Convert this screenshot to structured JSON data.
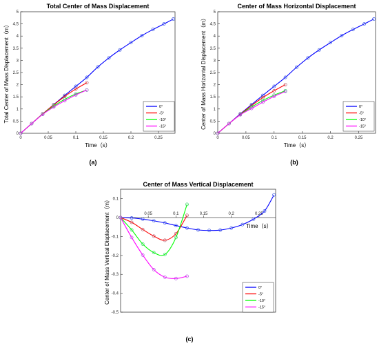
{
  "chart_data": [
    {
      "type": "line",
      "panel_label": "(a)",
      "title": "Total Center of Mass Displacement",
      "xlabel": "Time（s）",
      "ylabel": "Total Center of Mass Displacement（m）",
      "xlim": [
        0,
        0.28
      ],
      "ylim": [
        0,
        5
      ],
      "xticks": [
        0,
        0.05,
        0.1,
        0.15,
        0.2,
        0.25
      ],
      "yticks": [
        0,
        0.5,
        1,
        1.5,
        2,
        2.5,
        3,
        3.5,
        4,
        4.5,
        5
      ],
      "grid": false,
      "legend_position": "bottom-right",
      "series": [
        {
          "name": "0°",
          "color": "#0000ff",
          "x": [
            0,
            0.02,
            0.04,
            0.06,
            0.08,
            0.1,
            0.12,
            0.14,
            0.16,
            0.18,
            0.2,
            0.22,
            0.24,
            0.26,
            0.277
          ],
          "y": [
            0,
            0.4,
            0.8,
            1.18,
            1.56,
            1.93,
            2.3,
            2.73,
            3.1,
            3.43,
            3.73,
            4.02,
            4.27,
            4.5,
            4.7
          ]
        },
        {
          "name": "-5°",
          "color": "#ff0000",
          "x": [
            0,
            0.02,
            0.04,
            0.06,
            0.08,
            0.1,
            0.12
          ],
          "y": [
            0,
            0.4,
            0.8,
            1.17,
            1.52,
            1.82,
            2.08
          ]
        },
        {
          "name": "-10°",
          "color": "#00ff00",
          "x": [
            0,
            0.02,
            0.04,
            0.06,
            0.08,
            0.1,
            0.12
          ],
          "y": [
            0,
            0.4,
            0.79,
            1.12,
            1.4,
            1.62,
            1.78
          ]
        },
        {
          "name": "-15°",
          "color": "#ff00ff",
          "x": [
            0,
            0.02,
            0.04,
            0.06,
            0.08,
            0.1,
            0.12
          ],
          "y": [
            0,
            0.4,
            0.78,
            1.08,
            1.34,
            1.58,
            1.78
          ]
        }
      ]
    },
    {
      "type": "line",
      "panel_label": "(b)",
      "title": "Center of Mass Horizontal Displacement",
      "xlabel": "Time（s）",
      "ylabel": "Center of Mass Horizontal Displacement（m）",
      "xlim": [
        0,
        0.28
      ],
      "ylim": [
        0,
        5
      ],
      "xticks": [
        0,
        0.05,
        0.1,
        0.15,
        0.2,
        0.25
      ],
      "yticks": [
        0,
        0.5,
        1,
        1.5,
        2,
        2.5,
        3,
        3.5,
        4,
        4.5,
        5
      ],
      "grid": false,
      "legend_position": "bottom-right",
      "series": [
        {
          "name": "0°",
          "color": "#0000ff",
          "x": [
            0,
            0.02,
            0.04,
            0.06,
            0.08,
            0.1,
            0.12,
            0.14,
            0.16,
            0.18,
            0.2,
            0.22,
            0.24,
            0.26,
            0.277
          ],
          "y": [
            0,
            0.4,
            0.8,
            1.18,
            1.56,
            1.93,
            2.3,
            2.72,
            3.1,
            3.43,
            3.73,
            4.02,
            4.27,
            4.5,
            4.7
          ]
        },
        {
          "name": "-5°",
          "color": "#ff0000",
          "x": [
            0,
            0.02,
            0.04,
            0.06,
            0.08,
            0.1,
            0.12
          ],
          "y": [
            0,
            0.4,
            0.78,
            1.14,
            1.47,
            1.75,
            2.0
          ]
        },
        {
          "name": "-10°",
          "color": "#00ff00",
          "x": [
            0,
            0.02,
            0.04,
            0.06,
            0.08,
            0.1,
            0.12
          ],
          "y": [
            0,
            0.4,
            0.77,
            1.08,
            1.35,
            1.57,
            1.75
          ]
        },
        {
          "name": "-15°",
          "color": "#ff00ff",
          "x": [
            0,
            0.02,
            0.04,
            0.06,
            0.08,
            0.1,
            0.12
          ],
          "y": [
            0,
            0.4,
            0.76,
            1.02,
            1.28,
            1.52,
            1.72
          ]
        }
      ]
    },
    {
      "type": "line",
      "panel_label": "(c)",
      "title": "Center of Mass Vertical Displacement",
      "xlabel": "Time（s）",
      "ylabel": "Center of Mass Vertical Displacement（m）",
      "xlim": [
        0,
        0.28
      ],
      "ylim": [
        -0.5,
        0.15
      ],
      "xticks": [
        0.05,
        0.1,
        0.15,
        0.2,
        0.25
      ],
      "yticks": [
        -0.5,
        -0.4,
        -0.3,
        -0.2,
        -0.1,
        0,
        0.1
      ],
      "grid": false,
      "legend_position": "bottom-right",
      "series": [
        {
          "name": "0°",
          "color": "#0000ff",
          "x": [
            0,
            0.02,
            0.04,
            0.06,
            0.08,
            0.1,
            0.12,
            0.14,
            0.16,
            0.18,
            0.2,
            0.22,
            0.24,
            0.26,
            0.277
          ],
          "y": [
            0,
            -0.002,
            -0.008,
            -0.017,
            -0.028,
            -0.042,
            -0.055,
            -0.065,
            -0.068,
            -0.066,
            -0.055,
            -0.037,
            -0.008,
            0.035,
            0.12
          ]
        },
        {
          "name": "-5°",
          "color": "#ff0000",
          "x": [
            0,
            0.02,
            0.04,
            0.06,
            0.08,
            0.1,
            0.12
          ],
          "y": [
            0,
            -0.025,
            -0.063,
            -0.098,
            -0.12,
            -0.085,
            0.012
          ]
        },
        {
          "name": "-10°",
          "color": "#00ff00",
          "x": [
            0,
            0.02,
            0.04,
            0.06,
            0.08,
            0.1,
            0.12
          ],
          "y": [
            0,
            -0.065,
            -0.14,
            -0.185,
            -0.195,
            -0.105,
            0.07
          ]
        },
        {
          "name": "-15°",
          "color": "#ff00ff",
          "x": [
            0,
            0.02,
            0.04,
            0.06,
            0.08,
            0.1,
            0.12
          ],
          "y": [
            0,
            -0.105,
            -0.198,
            -0.275,
            -0.315,
            -0.322,
            -0.31
          ]
        }
      ]
    }
  ]
}
